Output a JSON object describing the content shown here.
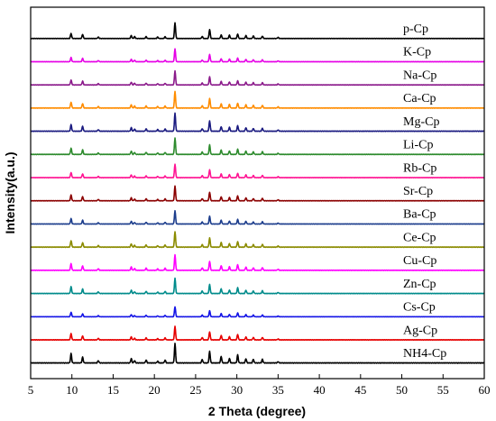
{
  "chart_data": {
    "type": "line",
    "xlabel": "2 Theta (degree)",
    "ylabel": "Intensity(a.u.)",
    "xlim": [
      5,
      60
    ],
    "xticks": [
      5,
      10,
      15,
      20,
      25,
      30,
      35,
      40,
      45,
      50,
      55,
      60
    ],
    "yticks_shown": false,
    "stacked": true,
    "peaks_2theta": [
      9.9,
      11.3,
      13.2,
      17.2,
      17.6,
      19.0,
      20.4,
      21.3,
      22.5,
      25.8,
      26.7,
      28.1,
      29.1,
      30.1,
      31.1,
      32.0,
      33.1,
      35.0
    ],
    "series": [
      {
        "name": "p-Cp",
        "color": "#000000",
        "scale": 0.55
      },
      {
        "name": "K-Cp",
        "color": "#e600e6",
        "scale": 0.45
      },
      {
        "name": "Na-Cp",
        "color": "#8b1a8b",
        "scale": 0.5
      },
      {
        "name": "Ca-Cp",
        "color": "#ff8c00",
        "scale": 0.6
      },
      {
        "name": "Mg-Cp",
        "color": "#1a1a80",
        "scale": 0.65
      },
      {
        "name": "Li-Cp",
        "color": "#2e8b2e",
        "scale": 0.6
      },
      {
        "name": "Rb-Cp",
        "color": "#ff1493",
        "scale": 0.5
      },
      {
        "name": "Sr-Cp",
        "color": "#8b0000",
        "scale": 0.55
      },
      {
        "name": "Ba-Cp",
        "color": "#1c3d8c",
        "scale": 0.5
      },
      {
        "name": "Ce-Cp",
        "color": "#8b8b00",
        "scale": 0.6
      },
      {
        "name": "Cu-Cp",
        "color": "#ff00ff",
        "scale": 0.6
      },
      {
        "name": "Zn-Cp",
        "color": "#008b8b",
        "scale": 0.6
      },
      {
        "name": "Cs-Cp",
        "color": "#1414e6",
        "scale": 0.4
      },
      {
        "name": "Ag-Cp",
        "color": "#e60000",
        "scale": 0.55
      },
      {
        "name": "NH4-Cp",
        "color": "#000000",
        "scale": 0.8
      }
    ]
  }
}
